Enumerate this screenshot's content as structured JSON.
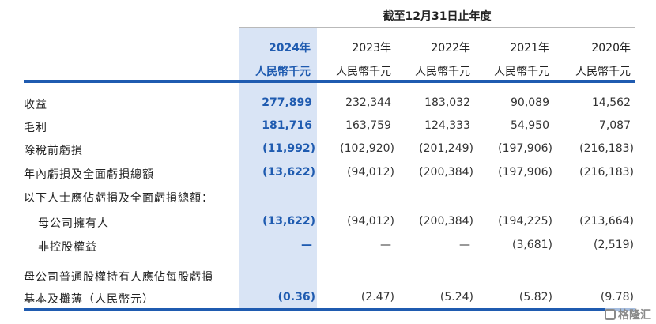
{
  "period_title": "截至12月31日止年度",
  "columns": [
    {
      "year": "2024年",
      "unit": "人民幣千元"
    },
    {
      "year": "2023年",
      "unit": "人民幣千元"
    },
    {
      "year": "2022年",
      "unit": "人民幣千元"
    },
    {
      "year": "2021年",
      "unit": "人民幣千元"
    },
    {
      "year": "2020年",
      "unit": "人民幣千元"
    }
  ],
  "rows": [
    {
      "label": "收益",
      "values": [
        "277,899",
        "232,344",
        "183,032",
        "90,089",
        "14,562"
      ]
    },
    {
      "label": "毛利",
      "values": [
        "181,716",
        "163,759",
        "124,333",
        "54,950",
        "7,087"
      ]
    },
    {
      "label": "除稅前虧損",
      "values": [
        "(11,992)",
        "(102,920)",
        "(201,249)",
        "(197,906)",
        "(216,183)"
      ]
    },
    {
      "label": "年內虧損及全面虧損總額",
      "values": [
        "(13,622)",
        "(94,012)",
        "(200,384)",
        "(197,906)",
        "(216,183)"
      ]
    },
    {
      "label": "以下人士應佔虧損及全面虧損總額：",
      "values": [
        "",
        "",
        "",
        "",
        ""
      ]
    },
    {
      "label": "母公司擁有人",
      "values": [
        "(13,622)",
        "(94,012)",
        "(200,384)",
        "(194,225)",
        "(213,664)"
      ]
    },
    {
      "label": "非控股權益",
      "values": [
        "—",
        "—",
        "—",
        "(3,681)",
        "(2,519)"
      ]
    },
    {
      "label": "母公司普通股權持有人應佔每股虧損",
      "values": [
        "",
        "",
        "",
        "",
        ""
      ]
    },
    {
      "label": "基本及攤薄（人民幣元）",
      "values": [
        "(0.36)",
        "(2.47)",
        "(5.24)",
        "(5.82)",
        "(9.78)"
      ]
    }
  ],
  "watermark": "格隆汇",
  "colors": {
    "accent": "#1f5bb0",
    "highlight": "#d9e4f5"
  }
}
